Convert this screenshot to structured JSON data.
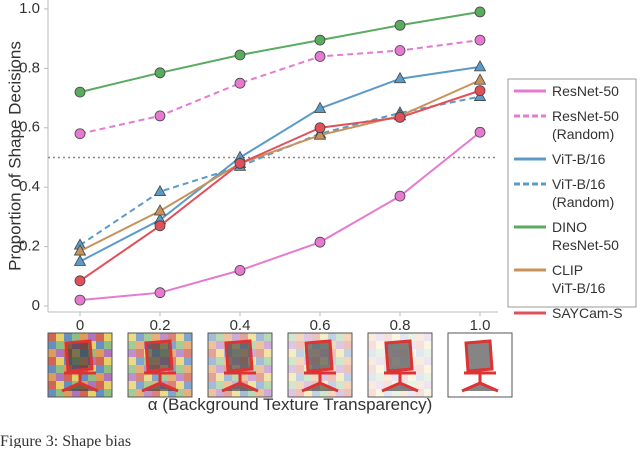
{
  "chart_data": {
    "type": "line",
    "xlabel": "α (Background Texture Transparency)",
    "ylabel": "Proportion of Shape Decisions",
    "caption": "Figure 3: Shape bias",
    "x": [
      0,
      0.2,
      0.4,
      0.6,
      0.8,
      1.0
    ],
    "xlim": [
      -0.08,
      1.045
    ],
    "ylim": [
      -0.02,
      1.03
    ],
    "xticks": [
      0,
      0.2,
      0.4,
      0.6,
      0.8,
      {
        "value": 1,
        "label": "1.0"
      }
    ],
    "yticks": [
      0,
      0.2,
      0.4,
      0.6,
      0.8,
      {
        "value": 1,
        "label": "1.0"
      }
    ],
    "reference_line": 0.5,
    "grid": false,
    "legend": "right",
    "series": [
      {
        "name": "ResNet-50",
        "color": "#e57ad0",
        "dash": false,
        "marker": "circle",
        "values": [
          0.02,
          0.045,
          0.12,
          0.215,
          0.37,
          0.585
        ]
      },
      {
        "name": "ResNet-50\n(Random)",
        "color": "#e57ad0",
        "dash": true,
        "marker": "circle",
        "values": [
          0.58,
          0.64,
          0.75,
          0.84,
          0.86,
          0.895
        ]
      },
      {
        "name": "ViT-B/16",
        "color": "#5b9bc8",
        "dash": false,
        "marker": "triangle",
        "values": [
          0.15,
          0.29,
          0.5,
          0.665,
          0.765,
          0.805
        ]
      },
      {
        "name": "ViT-B/16\n(Random)",
        "color": "#5b9bc8",
        "dash": true,
        "marker": "triangle",
        "values": [
          0.205,
          0.385,
          0.47,
          0.58,
          0.65,
          0.705
        ]
      },
      {
        "name": "DINO\nResNet-50",
        "color": "#5aab5f",
        "dash": false,
        "marker": "circle",
        "values": [
          0.72,
          0.785,
          0.845,
          0.895,
          0.945,
          0.99
        ]
      },
      {
        "name": "CLIP\nViT-B/16",
        "color": "#c8935a",
        "dash": false,
        "marker": "triangle",
        "values": [
          0.185,
          0.32,
          0.48,
          0.575,
          0.64,
          0.76
        ]
      },
      {
        "name": "SAYCam-S",
        "color": "#e0505a",
        "dash": false,
        "marker": "circle",
        "values": [
          0.085,
          0.27,
          0.48,
          0.6,
          0.635,
          0.725
        ]
      }
    ]
  }
}
